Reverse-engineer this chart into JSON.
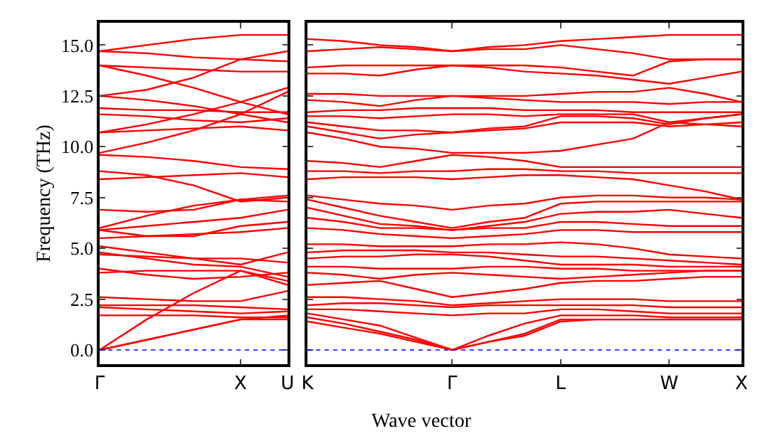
{
  "chart_data": [
    {
      "type": "line",
      "ylabel": "Frequency (THz)",
      "categories": [
        "Γ",
        null,
        null,
        "X",
        "U"
      ],
      "ylim": [
        -0.7,
        16.1
      ],
      "yticks": [
        {
          "value": 0,
          "label": "0.0"
        },
        {
          "value": 2.5,
          "label": "2.5"
        },
        {
          "value": 5,
          "label": "5.0"
        },
        {
          "value": 7.5,
          "label": "7.5"
        },
        {
          "value": 10,
          "label": "10.0"
        },
        {
          "value": 12.5,
          "label": "12.5"
        },
        {
          "value": 15,
          "label": "15.0"
        }
      ],
      "line_style": "solid",
      "marker": "none",
      "ref_lines": [
        {
          "axis": "y",
          "value": 0,
          "color": "#0000ff",
          "line_style": "dotted"
        }
      ],
      "series": [
        {
          "color": "#ff0000",
          "values": [
            14.7,
            15.0,
            15.3,
            15.5,
            15.5
          ]
        },
        {
          "color": "#ff0000",
          "values": [
            14.7,
            14.6,
            14.4,
            14.3,
            14.7
          ]
        },
        {
          "color": "#ff0000",
          "values": [
            14.0,
            13.9,
            13.8,
            13.7,
            13.7
          ]
        },
        {
          "color": "#ff0000",
          "values": [
            14.0,
            13.5,
            12.9,
            12.2,
            12.9
          ]
        },
        {
          "color": "#ff0000",
          "values": [
            12.5,
            12.8,
            13.4,
            14.3,
            14.2
          ]
        },
        {
          "color": "#ff0000",
          "values": [
            12.5,
            12.3,
            12.0,
            11.6,
            12.7
          ]
        },
        {
          "color": "#ff0000",
          "values": [
            11.9,
            11.8,
            11.8,
            11.7,
            11.7
          ]
        },
        {
          "color": "#ff0000",
          "values": [
            11.6,
            11.5,
            11.3,
            11.2,
            11.4
          ]
        },
        {
          "color": "#ff0000",
          "values": [
            10.7,
            11.1,
            11.6,
            12.2,
            11.6
          ]
        },
        {
          "color": "#ff0000",
          "values": [
            10.7,
            10.8,
            10.9,
            11.0,
            10.8
          ]
        },
        {
          "color": "#ff0000",
          "values": [
            9.7,
            10.2,
            10.8,
            11.6,
            11.2
          ]
        },
        {
          "color": "#ff0000",
          "values": [
            9.6,
            9.5,
            9.3,
            9.0,
            8.9
          ]
        },
        {
          "color": "#ff0000",
          "values": [
            8.8,
            8.6,
            8.1,
            7.3,
            7.5
          ]
        },
        {
          "color": "#ff0000",
          "values": [
            8.4,
            8.5,
            8.6,
            8.7,
            8.5
          ]
        },
        {
          "color": "#ff0000",
          "values": [
            6.9,
            6.8,
            6.9,
            7.4,
            7.3
          ]
        },
        {
          "color": "#ff0000",
          "values": [
            6.0,
            6.6,
            7.1,
            7.4,
            7.6
          ]
        },
        {
          "color": "#ff0000",
          "values": [
            5.9,
            6.1,
            6.3,
            6.5,
            6.9
          ]
        },
        {
          "color": "#ff0000",
          "values": [
            5.9,
            5.6,
            5.6,
            6.1,
            6.3
          ]
        },
        {
          "color": "#ff0000",
          "values": [
            5.5,
            5.6,
            5.7,
            5.8,
            6.0
          ]
        },
        {
          "color": "#ff0000",
          "values": [
            5.1,
            4.8,
            4.5,
            4.2,
            4.8
          ]
        },
        {
          "color": "#ff0000",
          "values": [
            4.8,
            4.5,
            4.2,
            4.1,
            3.6
          ]
        },
        {
          "color": "#ff0000",
          "values": [
            4.7,
            4.6,
            4.5,
            4.5,
            4.3
          ]
        },
        {
          "color": "#ff0000",
          "values": [
            4.0,
            3.7,
            3.5,
            3.6,
            3.8
          ]
        },
        {
          "color": "#ff0000",
          "values": [
            3.8,
            3.9,
            3.9,
            3.9,
            3.4
          ]
        },
        {
          "color": "#ff0000",
          "values": [
            2.6,
            2.5,
            2.4,
            2.4,
            2.9
          ]
        },
        {
          "color": "#ff0000",
          "values": [
            2.2,
            2.2,
            2.2,
            2.1,
            2.0
          ]
        },
        {
          "color": "#ff0000",
          "values": [
            2.1,
            2.0,
            1.9,
            1.8,
            1.9
          ]
        },
        {
          "color": "#ff0000",
          "values": [
            1.7,
            1.7,
            1.7,
            1.6,
            1.6
          ]
        },
        {
          "color": "#ff0000",
          "values": [
            0,
            1.5,
            2.8,
            3.9,
            3.2
          ]
        },
        {
          "color": "#ff0000",
          "values": [
            0,
            0.5,
            1.0,
            1.5,
            1.5
          ]
        },
        {
          "color": "#ff0000",
          "values": [
            0,
            0.5,
            1.0,
            1.5,
            1.7
          ]
        }
      ]
    },
    {
      "type": "line",
      "xlabel": "Wave vector",
      "categories": [
        "K",
        null,
        null,
        null,
        "Γ",
        null,
        null,
        "L",
        null,
        null,
        "W",
        null,
        "X"
      ],
      "ylim": [
        -0.7,
        16.1
      ],
      "yticks": [
        0,
        2.5,
        5,
        7.5,
        10,
        12.5,
        15
      ],
      "tick_labels": "x",
      "line_style": "solid",
      "marker": "none",
      "ref_lines": [
        {
          "axis": "y",
          "value": 0,
          "color": "#0000ff",
          "line_style": "dotted"
        }
      ],
      "series": [
        {
          "color": "#ff0000",
          "values": [
            15.3,
            15.2,
            15.0,
            14.9,
            14.7,
            14.9,
            15.0,
            15.2,
            15.3,
            15.4,
            15.5,
            15.5,
            15.5
          ]
        },
        {
          "color": "#ff0000",
          "values": [
            14.7,
            14.8,
            14.9,
            14.8,
            14.7,
            14.8,
            14.8,
            15.0,
            14.8,
            14.6,
            14.3,
            14.3,
            14.3
          ]
        },
        {
          "color": "#ff0000",
          "values": [
            13.9,
            14.0,
            14.0,
            14.0,
            14.0,
            14.0,
            14.0,
            13.9,
            13.7,
            13.5,
            14.2,
            14.3,
            14.3
          ]
        },
        {
          "color": "#ff0000",
          "values": [
            13.6,
            13.6,
            13.5,
            13.8,
            14.0,
            13.9,
            13.7,
            13.6,
            13.5,
            13.3,
            13.1,
            13.4,
            13.7
          ]
        },
        {
          "color": "#ff0000",
          "values": [
            12.6,
            12.6,
            12.5,
            12.5,
            12.5,
            12.5,
            12.5,
            12.6,
            12.7,
            12.7,
            12.9,
            12.6,
            12.2
          ]
        },
        {
          "color": "#ff0000",
          "values": [
            12.3,
            12.2,
            12.0,
            12.3,
            12.5,
            12.4,
            12.3,
            12.2,
            12.2,
            12.2,
            12.1,
            12.2,
            12.2
          ]
        },
        {
          "color": "#ff0000",
          "values": [
            11.7,
            11.8,
            11.8,
            11.9,
            11.9,
            11.9,
            11.8,
            11.8,
            11.8,
            11.7,
            11.7,
            11.7,
            11.7
          ]
        },
        {
          "color": "#ff0000",
          "values": [
            11.5,
            11.5,
            11.4,
            11.5,
            11.6,
            11.6,
            11.5,
            11.6,
            11.6,
            11.6,
            11.2,
            11.4,
            11.6
          ]
        },
        {
          "color": "#ff0000",
          "values": [
            11.2,
            11.0,
            10.8,
            10.8,
            10.7,
            10.9,
            11.0,
            11.5,
            11.5,
            11.4,
            11.1,
            11.4,
            11.6
          ]
        },
        {
          "color": "#ff0000",
          "values": [
            11.0,
            10.7,
            10.4,
            10.6,
            10.7,
            10.8,
            10.9,
            11.2,
            11.2,
            11.2,
            11.0,
            11.1,
            11.2
          ]
        },
        {
          "color": "#ff0000",
          "values": [
            10.7,
            10.4,
            10.0,
            9.9,
            9.7,
            9.7,
            9.7,
            9.8,
            10.1,
            10.4,
            11.2,
            11.1,
            11.0
          ]
        },
        {
          "color": "#ff0000",
          "values": [
            9.3,
            9.2,
            9.0,
            9.3,
            9.6,
            9.5,
            9.3,
            9.0,
            9.0,
            9.0,
            9.0,
            9.0,
            9.0
          ]
        },
        {
          "color": "#ff0000",
          "values": [
            8.8,
            8.8,
            8.7,
            8.8,
            8.8,
            8.9,
            8.9,
            8.8,
            8.8,
            8.7,
            8.7,
            8.7,
            8.7
          ]
        },
        {
          "color": "#ff0000",
          "values": [
            8.4,
            8.5,
            8.5,
            8.5,
            8.4,
            8.5,
            8.6,
            8.6,
            8.5,
            8.4,
            8.1,
            7.8,
            7.4
          ]
        },
        {
          "color": "#ff0000",
          "values": [
            7.6,
            7.4,
            7.2,
            7.1,
            6.9,
            7.1,
            7.2,
            7.5,
            7.6,
            7.6,
            7.5,
            7.5,
            7.4
          ]
        },
        {
          "color": "#ff0000",
          "values": [
            7.4,
            7.0,
            6.6,
            6.3,
            6.0,
            6.3,
            6.5,
            7.2,
            7.3,
            7.3,
            7.3,
            7.3,
            7.3
          ]
        },
        {
          "color": "#ff0000",
          "values": [
            7.0,
            6.6,
            6.2,
            6.1,
            5.9,
            6.1,
            6.3,
            6.7,
            6.8,
            6.8,
            6.9,
            6.7,
            6.5
          ]
        },
        {
          "color": "#ff0000",
          "values": [
            6.5,
            6.3,
            6.0,
            6.0,
            5.9,
            6.0,
            6.0,
            6.3,
            6.3,
            6.2,
            6.1,
            6.1,
            6.1
          ]
        },
        {
          "color": "#ff0000",
          "values": [
            6.0,
            5.9,
            5.7,
            5.6,
            5.5,
            5.6,
            5.7,
            5.9,
            5.9,
            5.8,
            5.8,
            5.8,
            5.8
          ]
        },
        {
          "color": "#ff0000",
          "values": [
            5.2,
            5.2,
            5.1,
            5.1,
            5.1,
            5.2,
            5.2,
            5.3,
            5.2,
            5.0,
            4.7,
            4.6,
            4.5
          ]
        },
        {
          "color": "#ff0000",
          "values": [
            4.8,
            4.9,
            4.9,
            4.9,
            4.8,
            4.8,
            4.7,
            4.6,
            4.6,
            4.5,
            4.4,
            4.3,
            4.2
          ]
        },
        {
          "color": "#ff0000",
          "values": [
            4.5,
            4.6,
            4.6,
            4.7,
            4.7,
            4.6,
            4.4,
            4.2,
            4.2,
            4.2,
            4.1,
            4.1,
            4.1
          ]
        },
        {
          "color": "#ff0000",
          "values": [
            4.1,
            4.1,
            4.0,
            4.0,
            4.0,
            4.1,
            4.1,
            4.0,
            4.0,
            3.9,
            3.9,
            3.9,
            3.9
          ]
        },
        {
          "color": "#ff0000",
          "values": [
            3.8,
            3.7,
            3.5,
            3.7,
            3.8,
            3.7,
            3.6,
            3.5,
            3.6,
            3.7,
            3.8,
            3.9,
            3.9
          ]
        },
        {
          "color": "#ff0000",
          "values": [
            3.2,
            3.3,
            3.4,
            3.0,
            2.6,
            2.8,
            3.0,
            3.3,
            3.4,
            3.4,
            3.5,
            3.6,
            3.6
          ]
        },
        {
          "color": "#ff0000",
          "values": [
            2.6,
            2.6,
            2.5,
            2.4,
            2.2,
            2.3,
            2.4,
            2.5,
            2.5,
            2.5,
            2.4,
            2.4,
            2.4
          ]
        },
        {
          "color": "#ff0000",
          "values": [
            2.2,
            2.3,
            2.3,
            2.2,
            2.1,
            2.2,
            2.2,
            2.2,
            2.2,
            2.2,
            2.1,
            2.1,
            2.1
          ]
        },
        {
          "color": "#ff0000",
          "values": [
            2.0,
            2.0,
            1.9,
            1.8,
            1.7,
            1.8,
            1.8,
            2.0,
            2.0,
            1.9,
            1.8,
            1.8,
            1.8
          ]
        },
        {
          "color": "#ff0000",
          "values": [
            1.8,
            1.5,
            1.2,
            0.6,
            0,
            0.7,
            1.3,
            1.7,
            1.7,
            1.7,
            1.6,
            1.6,
            1.6
          ]
        },
        {
          "color": "#ff0000",
          "values": [
            1.6,
            1.3,
            0.9,
            0.5,
            0,
            0.4,
            0.8,
            1.5,
            1.5,
            1.5,
            1.5,
            1.5,
            1.5
          ]
        },
        {
          "color": "#ff0000",
          "values": [
            1.4,
            1.1,
            0.8,
            0.4,
            0,
            0.4,
            0.7,
            1.4,
            1.5,
            1.5,
            1.5,
            1.5,
            1.5
          ]
        }
      ]
    }
  ]
}
